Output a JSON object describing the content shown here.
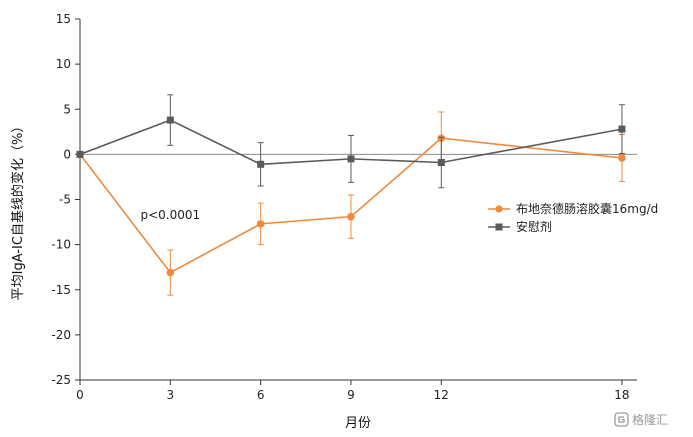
{
  "chart_data": {
    "type": "line",
    "title": "",
    "xlabel": "月份",
    "ylabel": "平均IgA-IC自基线的变化（%）",
    "x": [
      0,
      3,
      6,
      9,
      12,
      18
    ],
    "x_ticks": [
      "0",
      "3",
      "6",
      "9",
      "12",
      "18"
    ],
    "xlim": [
      0,
      18.5
    ],
    "y_ticks": [
      "15",
      "10",
      "5",
      "0",
      "-5",
      "-10",
      "-15",
      "-20",
      "-25"
    ],
    "ylim": [
      -25,
      15
    ],
    "zero_line": true,
    "grid": false,
    "legend_position": "right",
    "series": [
      {
        "name": "布地奈德肠溶胶囊16mg/d",
        "color": "#f08a3c",
        "marker": "circle",
        "values": [
          0,
          -13.1,
          -7.7,
          -6.9,
          1.8,
          -0.4
        ],
        "errors": [
          0,
          2.5,
          2.3,
          2.4,
          2.9,
          2.6
        ]
      },
      {
        "name": "安慰剂",
        "color": "#5a5a5a",
        "marker": "square",
        "values": [
          0,
          3.8,
          -1.1,
          -0.5,
          -0.9,
          2.8
        ],
        "errors": [
          0,
          2.8,
          2.4,
          2.6,
          2.8,
          2.7
        ]
      }
    ],
    "annotations": [
      {
        "text": "p<0.0001",
        "x": 3,
        "y": -6.7
      }
    ]
  },
  "watermark": "格隆汇"
}
